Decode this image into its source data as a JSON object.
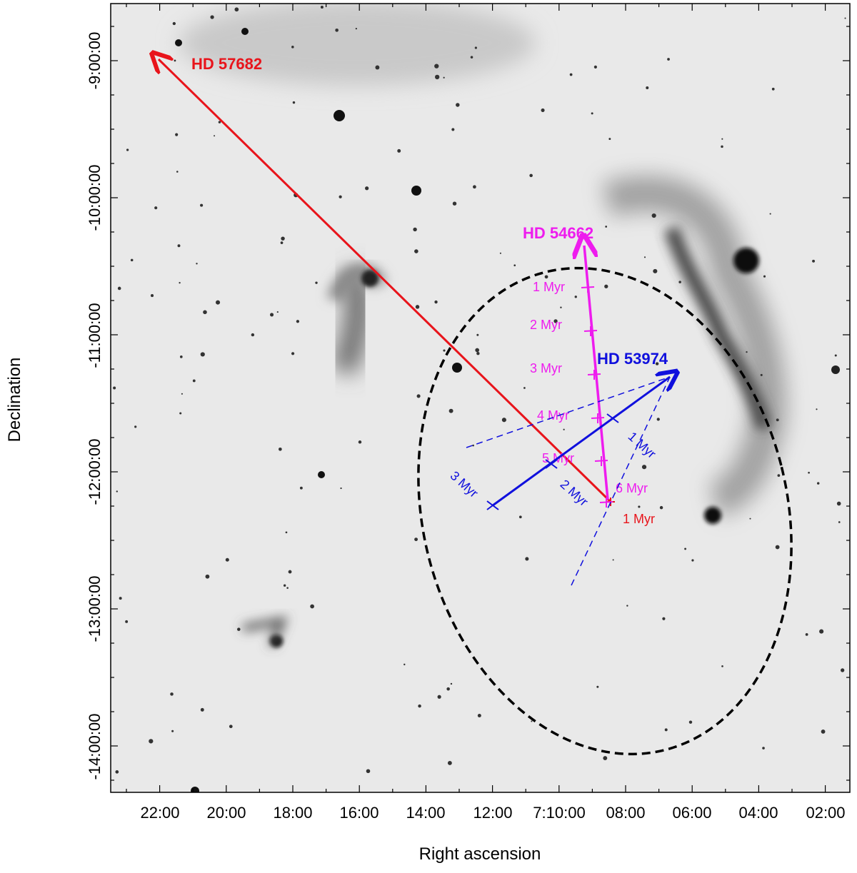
{
  "axes": {
    "xlabel": "Right ascension",
    "ylabel": "Declination",
    "x_ticks": [
      "22:00",
      "20:00",
      "18:00",
      "16:00",
      "14:00",
      "12:00",
      "7:10:00",
      "08:00",
      "06:00",
      "04:00",
      "02:00"
    ],
    "y_ticks": [
      "-9:00:00",
      "-10:00:00",
      "-11:00:00",
      "-12:00:00",
      "-13:00:00",
      "-14:00:00"
    ]
  },
  "stars": {
    "hd57682": {
      "name": "HD 57682",
      "color": "#e8141b"
    },
    "hd54662": {
      "name": "HD 54662",
      "color": "#ee1cee"
    },
    "hd53974": {
      "name": "HD 53974",
      "color": "#1010dd"
    }
  },
  "age_labels": {
    "red": [
      "1 Myr"
    ],
    "magenta": [
      "1 Myr",
      "2 Myr",
      "3 Myr",
      "4 Myr",
      "5 Myr",
      "6 Myr"
    ],
    "blue": [
      "1 Myr",
      "2 Myr",
      "3 Myr"
    ]
  },
  "colors": {
    "ellipse": "#000000",
    "background": "#ffffff"
  }
}
